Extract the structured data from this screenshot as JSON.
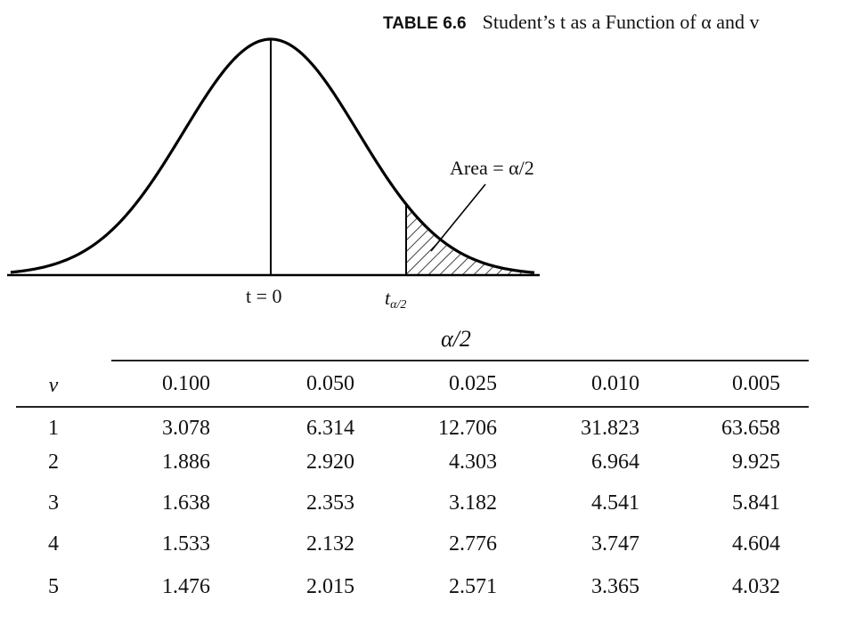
{
  "caption": {
    "label": "TABLE 6.6",
    "title": "Student’s t as a Function of α and v"
  },
  "figure": {
    "area_label": "Area = α/2",
    "center_label": "t = 0",
    "tail_label_main": "t",
    "tail_label_sub": "α/2"
  },
  "table": {
    "group_header": "α/2",
    "row_header": "v",
    "columns": [
      "0.100",
      "0.050",
      "0.025",
      "0.010",
      "0.005"
    ],
    "rows": [
      {
        "v": "1",
        "values": [
          "3.078",
          "6.314",
          "12.706",
          "31.823",
          "63.658"
        ]
      },
      {
        "v": "2",
        "values": [
          "1.886",
          "2.920",
          "4.303",
          "6.964",
          "9.925"
        ]
      },
      {
        "v": "3",
        "values": [
          "1.638",
          "2.353",
          "3.182",
          "4.541",
          "5.841"
        ]
      },
      {
        "v": "4",
        "values": [
          "1.533",
          "2.132",
          "2.776",
          "3.747",
          "4.604"
        ]
      },
      {
        "v": "5",
        "values": [
          "1.476",
          "2.015",
          "2.571",
          "3.365",
          "4.032"
        ]
      }
    ]
  }
}
